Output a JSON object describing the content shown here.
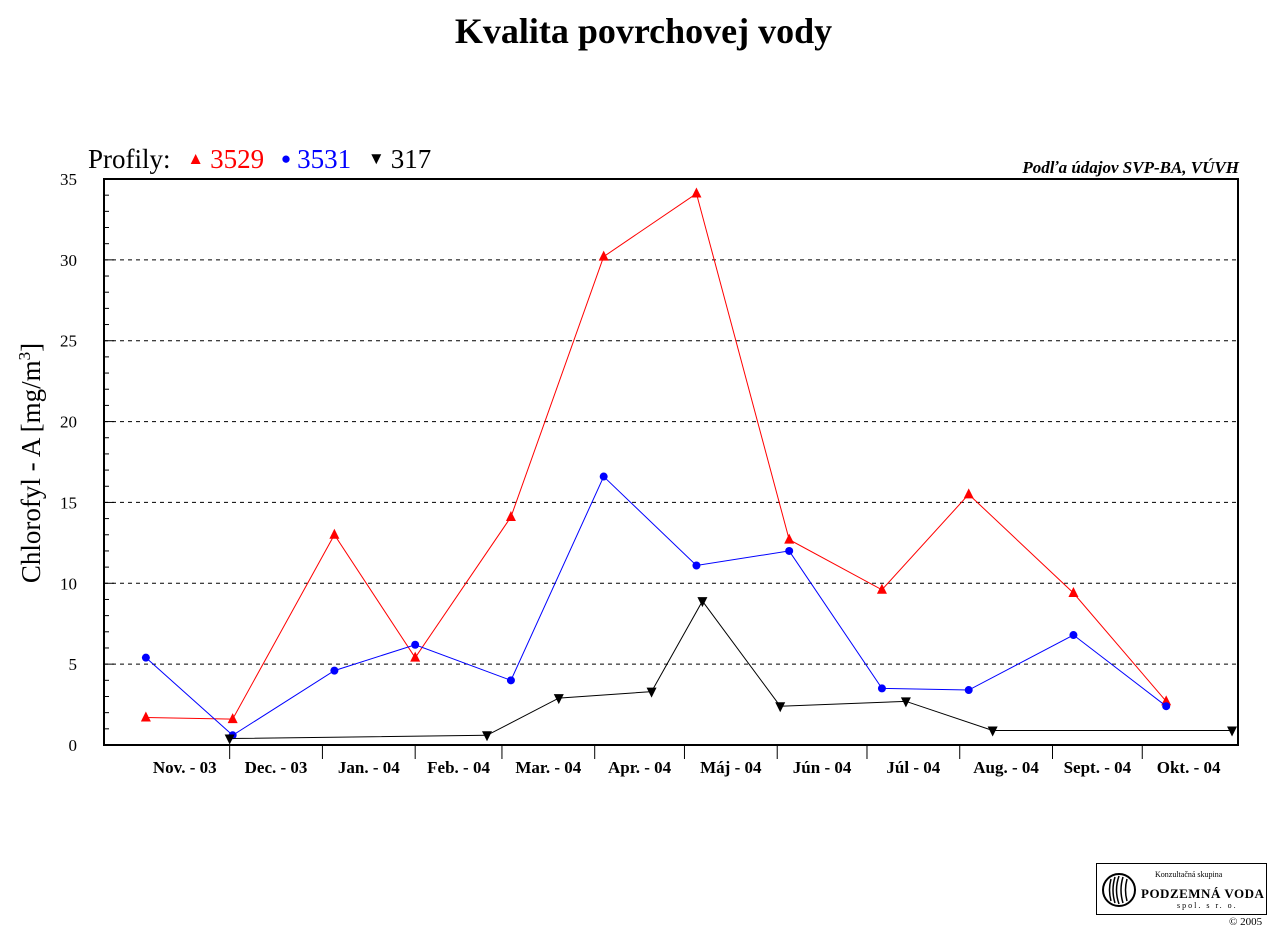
{
  "chart_data": {
    "type": "line",
    "title": "Kvalita povrchovej vody",
    "source_note": "Podľa údajov SVP-BA, VÚVH",
    "legend_prefix": "Profily:",
    "ylabel": "Chlorofyl - A [mg/m",
    "ylabel_sup": "3",
    "ylabel_suffix": "]",
    "ylim": [
      0,
      35
    ],
    "yticks": [
      0,
      5,
      10,
      15,
      20,
      25,
      30,
      35
    ],
    "grid": "horizontal dashed at major ticks",
    "legend_position": "top-left",
    "categories": [
      "Nov. - 03",
      "Dec. - 03",
      "Jan. - 04",
      "Feb. - 04",
      "Mar. - 04",
      "Apr. - 04",
      "Máj - 04",
      "Jún - 04",
      "Júl - 04",
      "Aug. - 04",
      "Sept. - 04",
      "Okt. - 04"
    ],
    "series": [
      {
        "name": "3529",
        "color": "#ff0000",
        "marker": "triangle-up",
        "points": [
          {
            "x": "2003-11-03",
            "y": 1.7
          },
          {
            "x": "2003-12-02",
            "y": 1.6
          },
          {
            "x": "2004-01-05",
            "y": 13.0
          },
          {
            "x": "2004-02-01",
            "y": 5.4
          },
          {
            "x": "2004-03-04",
            "y": 14.1
          },
          {
            "x": "2004-04-04",
            "y": 30.2
          },
          {
            "x": "2004-05-05",
            "y": 34.1
          },
          {
            "x": "2004-06-05",
            "y": 12.7
          },
          {
            "x": "2004-07-06",
            "y": 9.6
          },
          {
            "x": "2004-08-04",
            "y": 15.5
          },
          {
            "x": "2004-09-08",
            "y": 9.4
          },
          {
            "x": "2004-10-09",
            "y": 2.7
          }
        ]
      },
      {
        "name": "3531",
        "color": "#0000ff",
        "marker": "circle",
        "points": [
          {
            "x": "2003-11-03",
            "y": 5.4
          },
          {
            "x": "2003-12-02",
            "y": 0.6
          },
          {
            "x": "2004-01-05",
            "y": 4.6
          },
          {
            "x": "2004-02-01",
            "y": 6.2
          },
          {
            "x": "2004-03-04",
            "y": 4.0
          },
          {
            "x": "2004-04-04",
            "y": 16.6
          },
          {
            "x": "2004-05-05",
            "y": 11.1
          },
          {
            "x": "2004-06-05",
            "y": 12.0
          },
          {
            "x": "2004-07-06",
            "y": 3.5
          },
          {
            "x": "2004-08-04",
            "y": 3.4
          },
          {
            "x": "2004-09-08",
            "y": 6.8
          },
          {
            "x": "2004-10-09",
            "y": 2.4
          }
        ]
      },
      {
        "name": "317",
        "color": "#000000",
        "marker": "triangle-down",
        "points": [
          {
            "x": "2003-12-01",
            "y": 0.4
          },
          {
            "x": "2004-02-25",
            "y": 0.6
          },
          {
            "x": "2004-03-20",
            "y": 2.9
          },
          {
            "x": "2004-04-20",
            "y": 3.3
          },
          {
            "x": "2004-05-07",
            "y": 8.9
          },
          {
            "x": "2004-06-02",
            "y": 2.4
          },
          {
            "x": "2004-07-14",
            "y": 2.7
          },
          {
            "x": "2004-08-12",
            "y": 0.9
          },
          {
            "x": "2004-10-31",
            "y": 0.9
          }
        ]
      }
    ]
  },
  "logo": {
    "line1": "Konzultačná skupina",
    "line2": "PODZEMNÁ VODA",
    "line3": "spol. s r. o."
  },
  "copyright": "© 2005"
}
